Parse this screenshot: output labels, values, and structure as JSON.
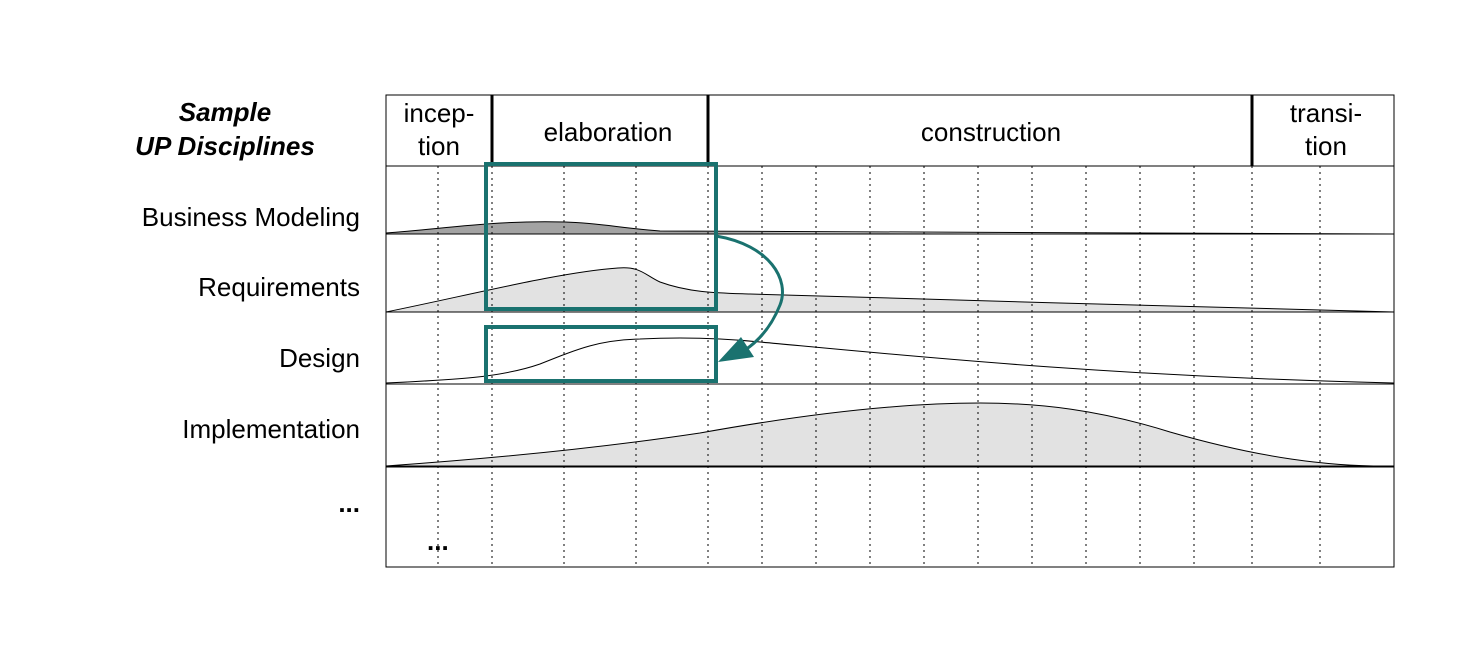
{
  "title": {
    "line1": "Sample",
    "line2": "UP Disciplines"
  },
  "phases": [
    {
      "id": "inception",
      "line1": "incep-",
      "line2": "tion"
    },
    {
      "id": "elaboration",
      "line1": "elaboration"
    },
    {
      "id": "construction",
      "line1": "construction"
    },
    {
      "id": "transition",
      "line1": "transi-",
      "line2": "tion"
    }
  ],
  "disciplines": [
    {
      "id": "business-modeling",
      "label": "Business Modeling"
    },
    {
      "id": "requirements",
      "label": "Requirements"
    },
    {
      "id": "design",
      "label": "Design"
    },
    {
      "id": "implementation",
      "label": "Implementation"
    }
  ],
  "ellipsis_label": "...",
  "ellipsis_cell": "...",
  "colors": {
    "highlight": "#1a726f",
    "fill_dark": "#a3a3a3",
    "fill_light": "#e2e2e2",
    "grid": "#000000"
  }
}
